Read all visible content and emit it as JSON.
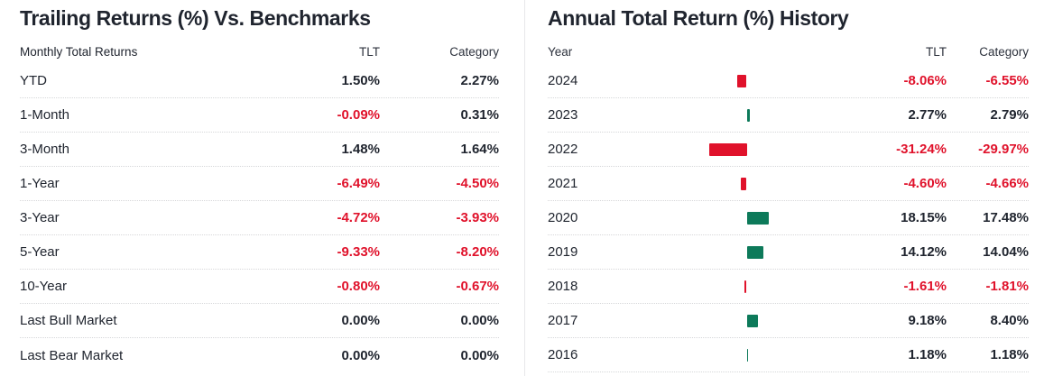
{
  "colors": {
    "negative_red": "#e0122b",
    "positive_green": "#0d7a5a",
    "text_dark": "#20252f",
    "header_text": "#2d323d",
    "dotted_separator": "#d6d7d9",
    "panel_divider": "#e7e8ea"
  },
  "trailing": {
    "title": "Trailing Returns (%) Vs. Benchmarks",
    "columns": {
      "label": "Monthly Total Returns",
      "tlt": "TLT",
      "category": "Category"
    },
    "rows": [
      {
        "label": "YTD",
        "tlt": "1.50%",
        "category": "2.27%"
      },
      {
        "label": "1-Month",
        "tlt": "-0.09%",
        "category": "0.31%"
      },
      {
        "label": "3-Month",
        "tlt": "1.48%",
        "category": "1.64%"
      },
      {
        "label": "1-Year",
        "tlt": "-6.49%",
        "category": "-4.50%"
      },
      {
        "label": "3-Year",
        "tlt": "-4.72%",
        "category": "-3.93%"
      },
      {
        "label": "5-Year",
        "tlt": "-9.33%",
        "category": "-8.20%"
      },
      {
        "label": "10-Year",
        "tlt": "-0.80%",
        "category": "-0.67%"
      },
      {
        "label": "Last Bull Market",
        "tlt": "0.00%",
        "category": "0.00%"
      },
      {
        "label": "Last Bear Market",
        "tlt": "0.00%",
        "category": "0.00%"
      }
    ]
  },
  "annual": {
    "title": "Annual Total Return (%) History",
    "columns": {
      "label": "Year",
      "tlt": "TLT",
      "category": "Category"
    },
    "rows": [
      {
        "label": "2024",
        "value": -8.06,
        "tlt": "-8.06%",
        "category": "-6.55%"
      },
      {
        "label": "2023",
        "value": 2.77,
        "tlt": "2.77%",
        "category": "2.79%"
      },
      {
        "label": "2022",
        "value": -31.24,
        "tlt": "-31.24%",
        "category": "-29.97%"
      },
      {
        "label": "2021",
        "value": -4.6,
        "tlt": "-4.60%",
        "category": "-4.66%"
      },
      {
        "label": "2020",
        "value": 18.15,
        "tlt": "18.15%",
        "category": "17.48%"
      },
      {
        "label": "2019",
        "value": 14.12,
        "tlt": "14.12%",
        "category": "14.04%"
      },
      {
        "label": "2018",
        "value": -1.61,
        "tlt": "-1.61%",
        "category": "-1.81%"
      },
      {
        "label": "2017",
        "value": 9.18,
        "tlt": "9.18%",
        "category": "8.40%"
      },
      {
        "label": "2016",
        "value": 1.18,
        "tlt": "1.18%",
        "category": "1.18%"
      }
    ]
  },
  "chart_data": {
    "type": "bar",
    "title": "Annual Total Return (%) History",
    "categories": [
      "2024",
      "2023",
      "2022",
      "2021",
      "2020",
      "2019",
      "2018",
      "2017",
      "2016"
    ],
    "series": [
      {
        "name": "TLT",
        "values": [
          -8.06,
          2.77,
          -31.24,
          -4.6,
          18.15,
          14.12,
          -1.61,
          9.18,
          1.18
        ]
      },
      {
        "name": "Category",
        "values": [
          -6.55,
          2.79,
          -29.97,
          -4.66,
          17.48,
          14.04,
          -1.81,
          8.4,
          1.18
        ]
      }
    ],
    "bar_series_shown": "TLT",
    "orientation": "horizontal",
    "xlim": [
      -32,
      32
    ],
    "bar_color_positive": "#0d7a5a",
    "bar_color_negative": "#e0122b",
    "grid": false,
    "legend": false
  }
}
